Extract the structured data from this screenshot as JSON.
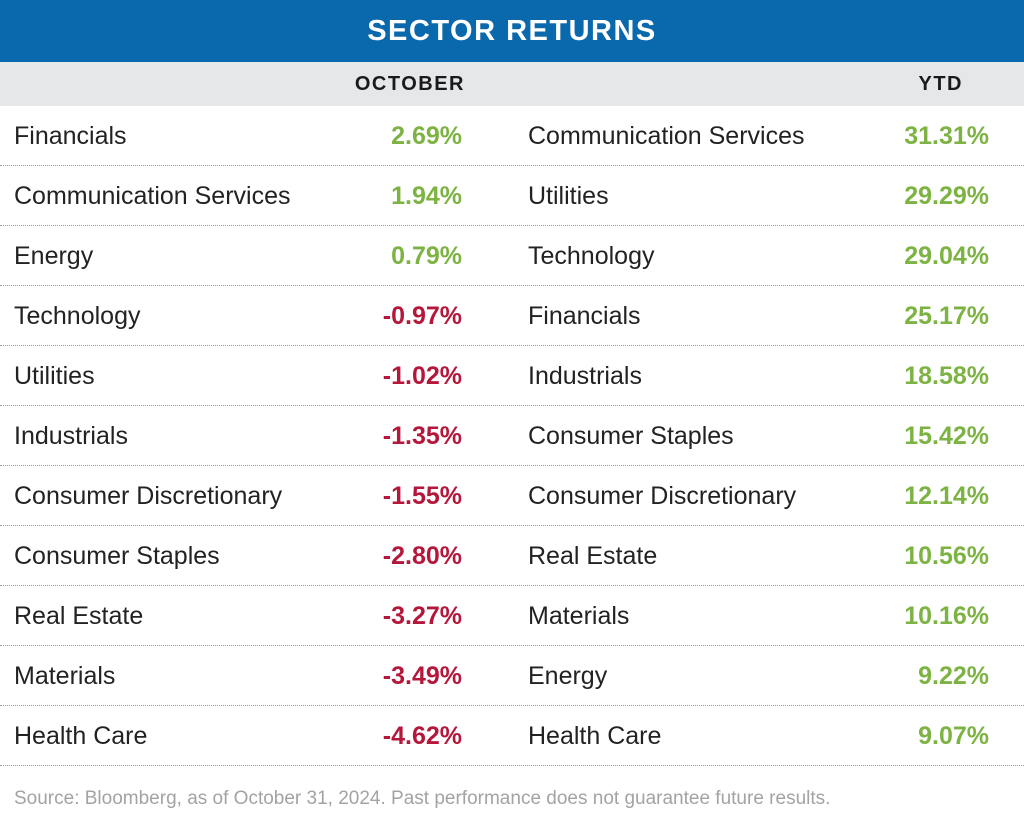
{
  "title": "SECTOR RETURNS",
  "headers": {
    "october": "OCTOBER",
    "ytd": "YTD"
  },
  "colors": {
    "title_bar": "#0a68ac",
    "header_bar": "#e6e7e9",
    "positive": "#7cb342",
    "negative": "#b5173a"
  },
  "chart_data": {
    "type": "table",
    "title": "SECTOR RETURNS",
    "columns": [
      "OCTOBER",
      "YTD"
    ],
    "october": [
      {
        "sector": "Financials",
        "value": "2.69%"
      },
      {
        "sector": "Communication Services",
        "value": "1.94%"
      },
      {
        "sector": "Energy",
        "value": "0.79%"
      },
      {
        "sector": "Technology",
        "value": "-0.97%"
      },
      {
        "sector": "Utilities",
        "value": "-1.02%"
      },
      {
        "sector": "Industrials",
        "value": "-1.35%"
      },
      {
        "sector": "Consumer Discretionary",
        "value": "-1.55%"
      },
      {
        "sector": "Consumer Staples",
        "value": "-2.80%"
      },
      {
        "sector": "Real Estate",
        "value": "-3.27%"
      },
      {
        "sector": "Materials",
        "value": "-3.49%"
      },
      {
        "sector": "Health Care",
        "value": "-4.62%"
      }
    ],
    "ytd": [
      {
        "sector": "Communication Services",
        "value": "31.31%"
      },
      {
        "sector": "Utilities",
        "value": "29.29%"
      },
      {
        "sector": "Technology",
        "value": "29.04%"
      },
      {
        "sector": "Financials",
        "value": "25.17%"
      },
      {
        "sector": "Industrials",
        "value": "18.58%"
      },
      {
        "sector": "Consumer Staples",
        "value": "15.42%"
      },
      {
        "sector": "Consumer Discretionary",
        "value": "12.14%"
      },
      {
        "sector": "Real Estate",
        "value": "10.56%"
      },
      {
        "sector": "Materials",
        "value": "10.16%"
      },
      {
        "sector": "Energy",
        "value": "9.22%"
      },
      {
        "sector": "Health Care",
        "value": "9.07%"
      }
    ]
  },
  "source": "Source: Bloomberg, as of October 31, 2024. Past performance does not guarantee future results."
}
